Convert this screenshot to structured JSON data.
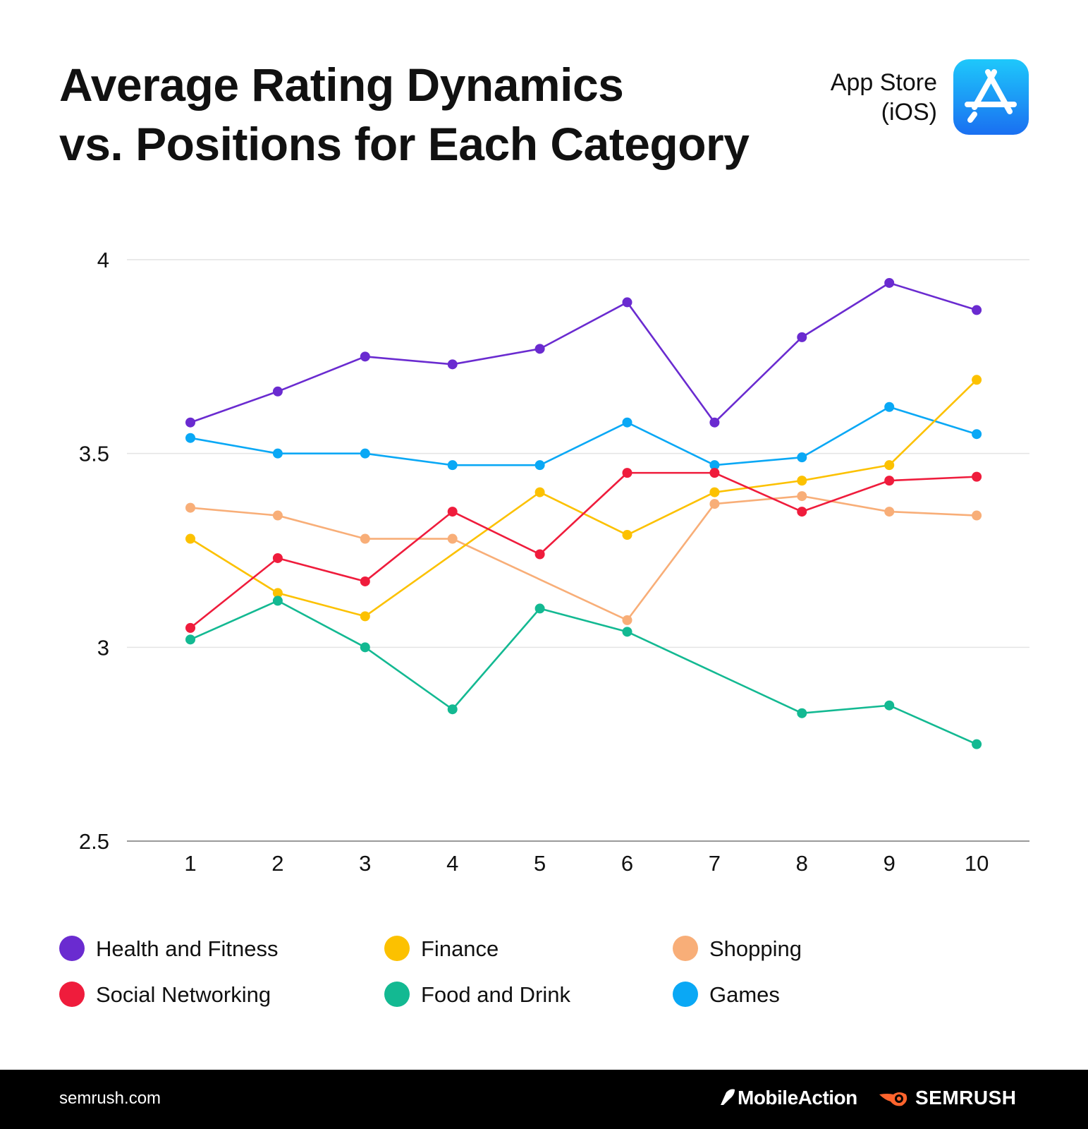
{
  "header": {
    "title_line1": "Average Rating Dynamics",
    "title_line2": "vs. Positions for Each Category",
    "store_line1": "App Store",
    "store_line2": "(iOS)",
    "store_icon": "app-store-icon"
  },
  "chart_data": {
    "type": "line",
    "title": "Average Rating Dynamics vs. Positions for Each Category",
    "xlabel": "",
    "ylabel": "",
    "x": [
      1,
      2,
      3,
      4,
      5,
      6,
      7,
      8,
      9,
      10
    ],
    "x_tick_labels": [
      "1",
      "2",
      "3",
      "4",
      "5",
      "6",
      "7",
      "8",
      "9",
      "10"
    ],
    "ylim": [
      2.5,
      4
    ],
    "y_ticks": [
      2.5,
      3,
      3.5,
      4
    ],
    "y_tick_labels": [
      "2.5",
      "3",
      "3.5",
      "4"
    ],
    "grid": true,
    "legend_position": "bottom",
    "series": [
      {
        "name": "Health and Fitness",
        "color": "#6a2bd0",
        "values": [
          3.58,
          3.66,
          3.75,
          3.73,
          3.77,
          3.89,
          3.58,
          3.8,
          3.94,
          3.87
        ]
      },
      {
        "name": "Games",
        "color": "#0aa8f5",
        "values": [
          3.54,
          3.5,
          3.5,
          3.47,
          3.47,
          3.58,
          3.47,
          3.49,
          3.62,
          3.55
        ]
      },
      {
        "name": "Shopping",
        "color": "#f8ae78",
        "values": [
          3.36,
          3.34,
          3.28,
          3.28,
          null,
          3.07,
          3.37,
          3.39,
          3.35,
          3.34
        ]
      },
      {
        "name": "Finance",
        "color": "#fcc100",
        "values": [
          3.28,
          3.14,
          3.08,
          null,
          3.4,
          3.29,
          3.4,
          3.43,
          3.47,
          3.69
        ]
      },
      {
        "name": "Social Networking",
        "color": "#ef1c3c",
        "values": [
          3.05,
          3.23,
          3.17,
          3.35,
          3.24,
          3.45,
          3.45,
          3.35,
          3.43,
          3.44
        ]
      },
      {
        "name": "Food and Drink",
        "color": "#13b992",
        "values": [
          3.02,
          3.12,
          3.0,
          2.84,
          3.1,
          3.04,
          null,
          2.83,
          2.85,
          2.75
        ]
      }
    ]
  },
  "legend": [
    {
      "label": "Health and Fitness",
      "color": "#6a2bd0"
    },
    {
      "label": "Finance",
      "color": "#fcc100"
    },
    {
      "label": "Shopping",
      "color": "#f8ae78"
    },
    {
      "label": "Social Networking",
      "color": "#ef1c3c"
    },
    {
      "label": "Food and Drink",
      "color": "#13b992"
    },
    {
      "label": "Games",
      "color": "#0aa8f5"
    }
  ],
  "footer": {
    "url": "semrush.com",
    "brand1": "MobileAction",
    "brand2": "SEMRUSH"
  }
}
